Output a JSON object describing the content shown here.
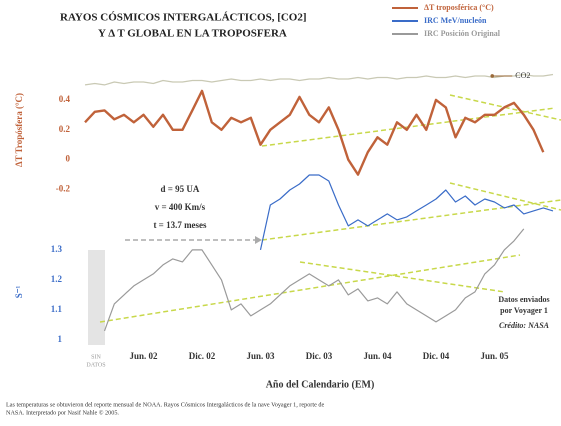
{
  "chart_data": {
    "type": "line",
    "title": [
      "RAYOS CÓSMICOS INTERGALÁCTICOS, [CO2]",
      "Y Δ T GLOBAL EN LA TROPOSFERA"
    ],
    "x_label": "Año del Calendario (EM)",
    "y_label": "ΔT Tropósfera (°C)",
    "y2_label": "S⁻¹",
    "categories": [
      null,
      null,
      null,
      null,
      null,
      null,
      "Jun. 02",
      null,
      null,
      null,
      null,
      null,
      "Dic. 02",
      null,
      null,
      null,
      null,
      null,
      "Jun. 03",
      null,
      null,
      null,
      null,
      null,
      "Dic. 03",
      null,
      null,
      null,
      null,
      null,
      "Jun. 04",
      null,
      null,
      null,
      null,
      null,
      "Dic. 04",
      null,
      null,
      null,
      null,
      null,
      "Jun. 05",
      null,
      null,
      null,
      null,
      null,
      null
    ],
    "ylim": [
      -1.24,
      0.6
    ],
    "yticks": [
      -0.2,
      0,
      0.2,
      0.4
    ],
    "y2lim": [
      0.983,
      1.9
    ],
    "y2ticks": [
      1,
      1.1,
      1.2,
      1.3
    ],
    "grid": false,
    "legend": "top-right",
    "series": [
      {
        "name": "ΔT troposférica (°C)",
        "color": "#c0623a",
        "axis": "y",
        "values": [
          0.25,
          0.32,
          0.33,
          0.27,
          0.3,
          0.25,
          0.3,
          0.22,
          0.3,
          0.2,
          0.2,
          0.33,
          0.46,
          0.25,
          0.2,
          0.28,
          0.25,
          0.28,
          0.1,
          0.2,
          0.25,
          0.3,
          0.42,
          0.3,
          0.25,
          0.35,
          0.2,
          0.0,
          -0.1,
          0.05,
          0.15,
          0.1,
          0.25,
          0.2,
          0.3,
          0.2,
          0.4,
          0.35,
          0.15,
          0.28,
          0.25,
          0.3,
          0.3,
          0.35,
          0.38,
          0.3,
          0.2,
          0.05,
          null
        ]
      },
      {
        "name": "IRC MeV/nucleón",
        "color": "#3a6cc8",
        "axis": "y2",
        "values": [
          null,
          null,
          null,
          null,
          null,
          null,
          null,
          null,
          null,
          null,
          null,
          null,
          null,
          null,
          null,
          null,
          null,
          null,
          1.3,
          1.45,
          1.47,
          1.5,
          1.52,
          1.55,
          1.55,
          1.53,
          1.45,
          1.38,
          1.4,
          1.38,
          1.4,
          1.42,
          1.4,
          1.41,
          1.43,
          1.45,
          1.47,
          1.5,
          1.46,
          1.48,
          1.45,
          1.47,
          1.46,
          1.44,
          1.45,
          1.42,
          1.43,
          1.44,
          1.43
        ]
      },
      {
        "name": "IRC Posición Original",
        "color": "#9a9a9a",
        "axis": "y2",
        "values": [
          null,
          null,
          1.03,
          1.12,
          1.15,
          1.18,
          1.2,
          1.22,
          1.25,
          1.27,
          1.26,
          1.3,
          1.3,
          1.25,
          1.2,
          1.1,
          1.12,
          1.08,
          1.1,
          1.12,
          1.15,
          1.18,
          1.2,
          1.22,
          1.2,
          1.18,
          1.2,
          1.15,
          1.17,
          1.13,
          1.14,
          1.12,
          1.16,
          1.12,
          1.1,
          1.08,
          1.06,
          1.08,
          1.1,
          1.14,
          1.16,
          1.22,
          1.25,
          1.3,
          1.33,
          1.37,
          null,
          null,
          null
        ]
      },
      {
        "name": "CO2",
        "color": "#c9c9b4",
        "axis": "y",
        "values": [
          0.5,
          0.51,
          0.5,
          0.52,
          0.51,
          0.52,
          0.52,
          0.51,
          0.53,
          0.52,
          0.52,
          0.53,
          0.53,
          0.52,
          0.53,
          0.54,
          0.53,
          0.53,
          0.54,
          0.53,
          0.54,
          0.54,
          0.53,
          0.54,
          0.54,
          0.55,
          0.54,
          0.54,
          0.55,
          0.54,
          0.55,
          0.55,
          0.54,
          0.55,
          0.55,
          0.56,
          0.55,
          0.55,
          0.56,
          0.55,
          0.56,
          0.56,
          0.55,
          0.56,
          0.56,
          0.57,
          0.56,
          0.56,
          0.57
        ]
      }
    ],
    "annotations": {
      "box": [
        "d = 95 UA",
        "v = 400 Km/s",
        "t = 13.7 meses"
      ],
      "voyager": [
        "Datos enviados",
        "por Voyager 1"
      ],
      "credit": "Crédito: NASA",
      "no_data": [
        "SIN",
        "DATOS"
      ]
    },
    "footnote": [
      "Las temperaturas se obtuvieron del reporte mensual de NOAA. Rayos Cósmicos Intergalácticos de la nave Voyager 1, reporte de",
      "NASA. Interpretado por Nasif Nahle © 2005."
    ]
  }
}
